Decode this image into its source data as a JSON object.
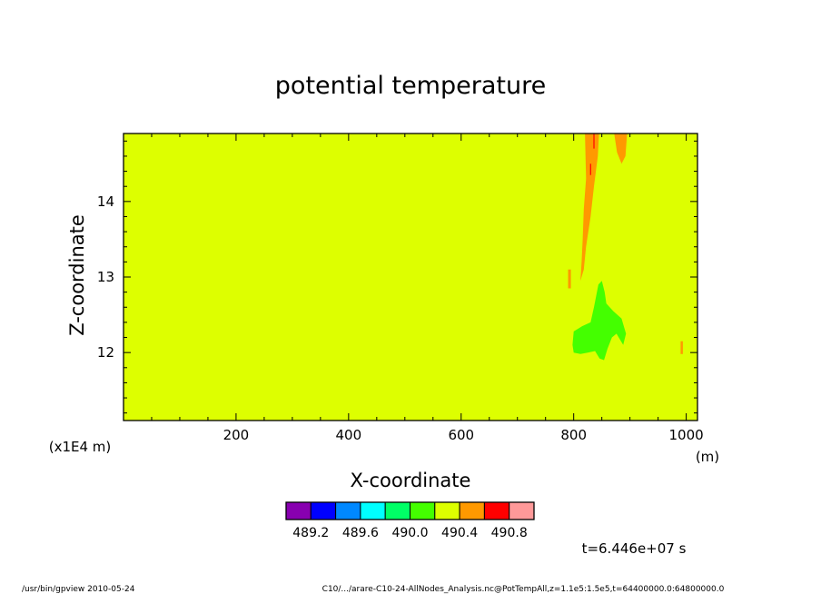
{
  "chart_data": {
    "type": "heatmap",
    "title": "potential temperature",
    "xlabel": "X-coordinate",
    "ylabel": "Z-coordinate",
    "x_unit": "(m)",
    "y_unit": "(x1E4 m)",
    "xlim": [
      0,
      1020
    ],
    "ylim": [
      11.1,
      14.9
    ],
    "x_ticks": [
      200,
      400,
      600,
      800,
      1000
    ],
    "x_tick_labels": [
      "200",
      "400",
      "600",
      "800",
      "1000"
    ],
    "y_ticks": [
      12,
      13,
      14
    ],
    "y_tick_labels": [
      "12",
      "13",
      "14"
    ],
    "background_level_index": 6,
    "regions": [
      {
        "level_index": 7,
        "points": [
          [
            820,
            14.9
          ],
          [
            845,
            14.9
          ],
          [
            843,
            14.6
          ],
          [
            836,
            14.2
          ],
          [
            830,
            13.8
          ],
          [
            822,
            13.4
          ],
          [
            818,
            13.1
          ],
          [
            812,
            12.95
          ],
          [
            814,
            13.2
          ],
          [
            816,
            13.5
          ],
          [
            818,
            13.9
          ],
          [
            822,
            14.3
          ]
        ]
      },
      {
        "level_index": 7,
        "points": [
          [
            872,
            14.9
          ],
          [
            895,
            14.9
          ],
          [
            892,
            14.6
          ],
          [
            885,
            14.5
          ],
          [
            877,
            14.65
          ]
        ]
      },
      {
        "level_index": 7,
        "points": [
          [
            790,
            13.1
          ],
          [
            795,
            13.1
          ],
          [
            795,
            12.85
          ],
          [
            790,
            12.85
          ]
        ]
      },
      {
        "level_index": 7,
        "points": [
          [
            990,
            12.15
          ],
          [
            994,
            12.15
          ],
          [
            994,
            11.98
          ],
          [
            990,
            11.98
          ]
        ]
      },
      {
        "level_index": 8,
        "points": [
          [
            835,
            14.9
          ],
          [
            837,
            14.9
          ],
          [
            837,
            14.7
          ],
          [
            835,
            14.7
          ]
        ]
      },
      {
        "level_index": 8,
        "points": [
          [
            829,
            14.5
          ],
          [
            831,
            14.5
          ],
          [
            831,
            14.35
          ],
          [
            829,
            14.35
          ]
        ]
      },
      {
        "level_index": 5,
        "points": [
          [
            798,
            12.1
          ],
          [
            800,
            12.28
          ],
          [
            815,
            12.35
          ],
          [
            830,
            12.4
          ],
          [
            836,
            12.6
          ],
          [
            844,
            12.9
          ],
          [
            850,
            12.95
          ],
          [
            855,
            12.8
          ],
          [
            858,
            12.65
          ],
          [
            870,
            12.55
          ],
          [
            885,
            12.45
          ],
          [
            893,
            12.25
          ],
          [
            888,
            12.1
          ],
          [
            876,
            12.25
          ],
          [
            868,
            12.2
          ],
          [
            860,
            12.05
          ],
          [
            854,
            11.9
          ],
          [
            846,
            11.92
          ],
          [
            838,
            12.02
          ],
          [
            825,
            12.0
          ],
          [
            812,
            11.98
          ],
          [
            800,
            12.0
          ]
        ]
      }
    ],
    "colorbar": {
      "colors": [
        "#8800b0",
        "#0000ff",
        "#0088ff",
        "#00ffff",
        "#00ff66",
        "#44ff00",
        "#ddff00",
        "#ff9900",
        "#ff0000",
        "#ff9999"
      ],
      "labels": [
        "489.2",
        "489.6",
        "490.0",
        "490.4",
        "490.8"
      ]
    }
  },
  "annotations": {
    "time_label": "t=6.446e+07 s",
    "footer_left": "/usr/bin/gpview   2010-05-24",
    "footer_right": "C10/.../arare-C10-24-AllNodes_Analysis.nc@PotTempAll,z=1.1e5:1.5e5,t=64400000.0:64800000.0"
  }
}
